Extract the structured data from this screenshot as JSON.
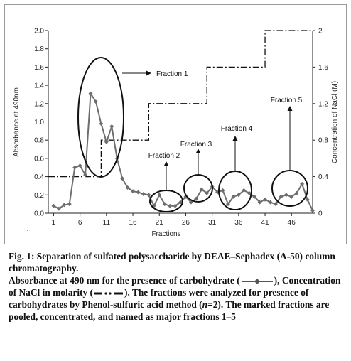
{
  "chart_data": {
    "type": "line",
    "xlabel": "Fractions",
    "ylabel_left": "Absorbance at 490nm",
    "ylabel_right": "Concentration of NaCl (M)",
    "xlim": [
      0,
      50
    ],
    "ylim_left": [
      0,
      2.0
    ],
    "ylim_right": [
      0,
      2
    ],
    "x_ticks": [
      "1",
      "6",
      "11",
      "16",
      "21",
      "26",
      "31",
      "36",
      "41",
      "46"
    ],
    "y_left_ticks": [
      "0.0",
      "0.2",
      "0.4",
      "0.6",
      "0.8",
      "1.0",
      "1.2",
      "1.4",
      "1.6",
      "1.8",
      "2.0"
    ],
    "y_right_ticks": [
      "0",
      "0.4",
      "0.8",
      "1.2",
      "1.6",
      "2"
    ],
    "grid": false,
    "series": [
      {
        "axis": "left",
        "color": "#6e6e6e",
        "x": [
          1,
          2,
          3,
          4,
          5,
          6,
          7,
          8,
          9,
          10,
          11,
          12,
          13,
          14,
          15,
          16,
          17,
          18,
          19,
          20,
          21,
          22,
          23,
          24,
          25,
          26,
          27,
          28,
          29,
          30,
          31,
          32,
          33,
          34,
          35,
          36,
          37,
          38,
          39,
          40,
          41,
          42,
          43,
          44,
          45,
          46,
          47,
          48,
          49,
          50
        ],
        "values": [
          0.08,
          0.05,
          0.09,
          0.1,
          0.5,
          0.52,
          0.42,
          1.31,
          1.22,
          0.98,
          0.78,
          0.95,
          0.6,
          0.38,
          0.28,
          0.24,
          0.23,
          0.21,
          0.2,
          0.08,
          0.2,
          0.1,
          0.08,
          0.08,
          0.12,
          0.18,
          0.12,
          0.16,
          0.26,
          0.22,
          0.29,
          0.23,
          0.25,
          0.1,
          0.18,
          0.2,
          0.25,
          0.22,
          0.18,
          0.12,
          0.15,
          0.12,
          0.1,
          0.18,
          0.2,
          0.18,
          0.22,
          0.32,
          0.15,
          0.03
        ]
      },
      {
        "axis": "right",
        "color": "#111111",
        "style": "dash-dot",
        "x": [
          0,
          10,
          10,
          19,
          19,
          22,
          22,
          30,
          30,
          35,
          35,
          41,
          41,
          50
        ],
        "values": [
          0.4,
          0.4,
          0.8,
          0.8,
          1.2,
          1.2,
          1.2,
          1.2,
          1.6,
          1.6,
          1.6,
          1.6,
          2.0,
          2.0
        ]
      }
    ],
    "annotations": [
      "Fraction 1",
      "Fraction 2",
      "Fraction 3",
      "Fraction 4",
      "Fraction 5"
    ]
  },
  "caption": {
    "line1": "Fig. 1: Separation of sulfated polysaccharide by DEAE–Sephadex (A-50) column chromatography.",
    "part_a": "Absorbance at 490 nm for the presence of carbohydrate (",
    "part_b": "), Concentration of NaCl in molarity (",
    "part_c": "). The fractions were analyzed for presence of carbohydrates by Phenol-sulfuric acid method (",
    "n_label": "n",
    "part_d": "=2). The marked fractions are pooled, concentrated, and named as major fractions 1–5"
  },
  "stray_mark": "`"
}
